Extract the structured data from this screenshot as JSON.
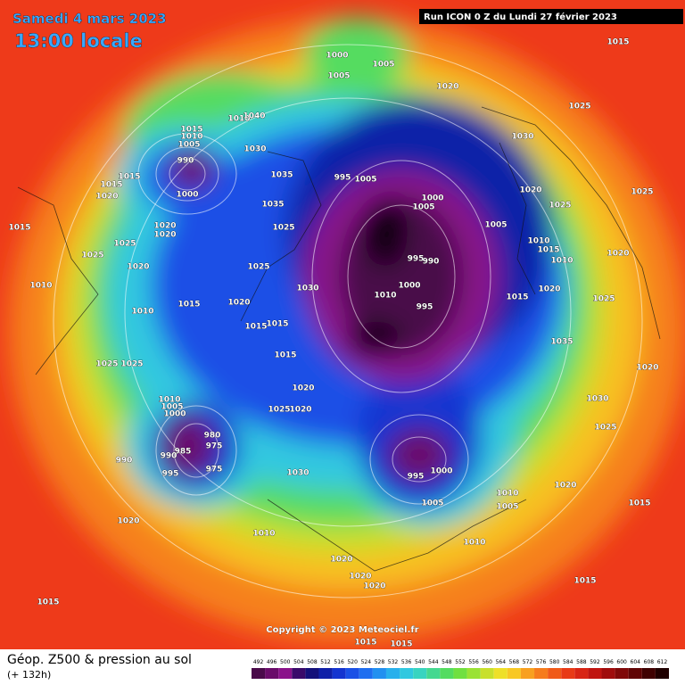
{
  "header": {
    "date": "Samedi 4 mars 2023",
    "time": "13:00 locale",
    "run": "Run ICON 0 Z du Lundi 27 février 2023"
  },
  "footer": {
    "title": "Géop. Z500 & pression au sol",
    "lead": "(+ 132h)",
    "copyright": "Copyright © 2023 Meteociel.fr"
  },
  "scale": {
    "ticks": [
      492,
      496,
      500,
      504,
      508,
      512,
      516,
      520,
      524,
      528,
      532,
      536,
      540,
      544,
      548,
      552,
      556,
      560,
      564,
      568,
      572,
      576,
      580,
      584,
      588,
      592,
      596,
      600,
      604,
      608,
      612
    ],
    "colors": [
      "#4a0a4a",
      "#6a0c6a",
      "#8a128a",
      "#3a0a6a",
      "#14107a",
      "#1020a8",
      "#1434d0",
      "#1a50e6",
      "#1e6ef0",
      "#2290f0",
      "#28b0ec",
      "#30c8e0",
      "#38d4c0",
      "#44d890",
      "#54dc60",
      "#70e040",
      "#9ae234",
      "#c8e02c",
      "#eee028",
      "#f8c824",
      "#f8a020",
      "#f67c1c",
      "#f05a18",
      "#e83a16",
      "#d82414",
      "#c01410",
      "#a00c0c",
      "#800808",
      "#600404",
      "#400202",
      "#200000"
    ]
  },
  "pressure_labels": [
    1015,
    1000,
    1005,
    1005,
    1020,
    1025,
    1010,
    1040,
    1015,
    1010,
    1005,
    1030,
    1030,
    990,
    1000,
    1035,
    995,
    1005,
    1015,
    1015,
    1020,
    1035,
    1000,
    1005,
    1020,
    1025,
    1025,
    1020,
    1020,
    1025,
    1005,
    1015,
    1025,
    1010,
    1015,
    1025,
    1025,
    995,
    990,
    1010,
    1020,
    1020,
    1010,
    1030,
    1000,
    1010,
    1015,
    1020,
    1025,
    1010,
    1015,
    1020,
    995,
    1015,
    1015,
    1035,
    1015,
    1025,
    1025,
    1020,
    1020,
    1030,
    1025,
    1020,
    1010,
    1005,
    1000,
    980,
    975,
    985,
    990,
    975,
    995,
    990,
    1025,
    1000,
    995,
    1030,
    1020,
    1010,
    1005,
    1005,
    1020,
    1010,
    1010,
    1015,
    1020,
    1020,
    1020,
    1015,
    1015,
    1015,
    1015
  ]
}
